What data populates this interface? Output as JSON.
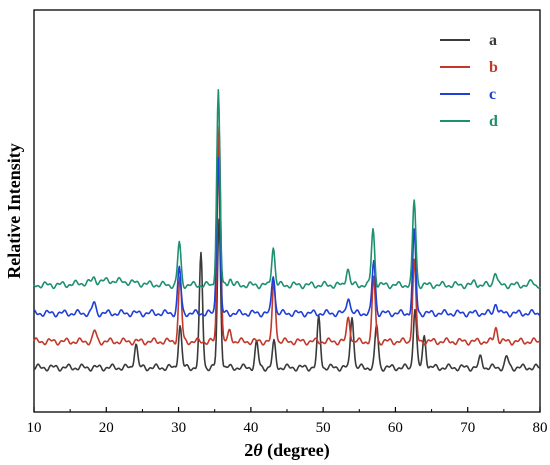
{
  "chart_data": {
    "type": "line",
    "title": "",
    "xlabel_prefix": "2",
    "xlabel_theta": "θ",
    "xlabel_suffix": " (degree)",
    "ylabel": "Relative Intensity",
    "xlim": [
      10,
      80
    ],
    "x_ticks": [
      "10",
      "20",
      "30",
      "40",
      "50",
      "60",
      "70",
      "80"
    ],
    "y_ticks_shown": false,
    "grid": false,
    "legend_position": "top-right",
    "series": [
      {
        "name": "a",
        "color": "#3a3a3a",
        "baseline": 0.63,
        "peaks": [
          [
            24.1,
            0.35
          ],
          [
            30.2,
            0.6
          ],
          [
            33.1,
            1.6
          ],
          [
            35.6,
            2.1
          ],
          [
            40.8,
            0.35
          ],
          [
            43.2,
            0.35
          ],
          [
            49.4,
            0.7
          ],
          [
            54.0,
            0.75
          ],
          [
            57.4,
            0.6
          ],
          [
            62.7,
            0.85
          ],
          [
            64.0,
            0.45
          ],
          [
            71.8,
            0.15
          ],
          [
            75.4,
            0.15
          ]
        ]
      },
      {
        "name": "b",
        "color": "#c0392b",
        "baseline": 1.0,
        "peaks": [
          [
            18.4,
            0.15
          ],
          [
            30.2,
            0.9
          ],
          [
            35.6,
            3.1
          ],
          [
            37.1,
            0.15
          ],
          [
            43.2,
            0.85
          ],
          [
            53.5,
            0.35
          ],
          [
            57.0,
            0.9
          ],
          [
            62.6,
            1.15
          ],
          [
            73.9,
            0.2
          ]
        ]
      },
      {
        "name": "c",
        "color": "#1f3fd6",
        "baseline": 1.4,
        "peaks": [
          [
            18.3,
            0.15
          ],
          [
            30.1,
            0.65
          ],
          [
            35.5,
            2.25
          ],
          [
            43.1,
            0.55
          ],
          [
            53.5,
            0.25
          ],
          [
            57.0,
            0.75
          ],
          [
            62.6,
            1.15
          ],
          [
            73.9,
            0.15
          ]
        ]
      },
      {
        "name": "d",
        "color": "#1e9070",
        "baseline": 1.8,
        "peaks": [
          [
            18.3,
            0.05
          ],
          [
            30.1,
            0.6
          ],
          [
            35.5,
            2.75
          ],
          [
            37.1,
            0.1
          ],
          [
            43.1,
            0.55
          ],
          [
            53.4,
            0.25
          ],
          [
            56.9,
            0.8
          ],
          [
            62.6,
            1.2
          ],
          [
            71.0,
            0.05
          ],
          [
            73.8,
            0.2
          ],
          [
            78.9,
            0.05
          ]
        ]
      }
    ]
  }
}
